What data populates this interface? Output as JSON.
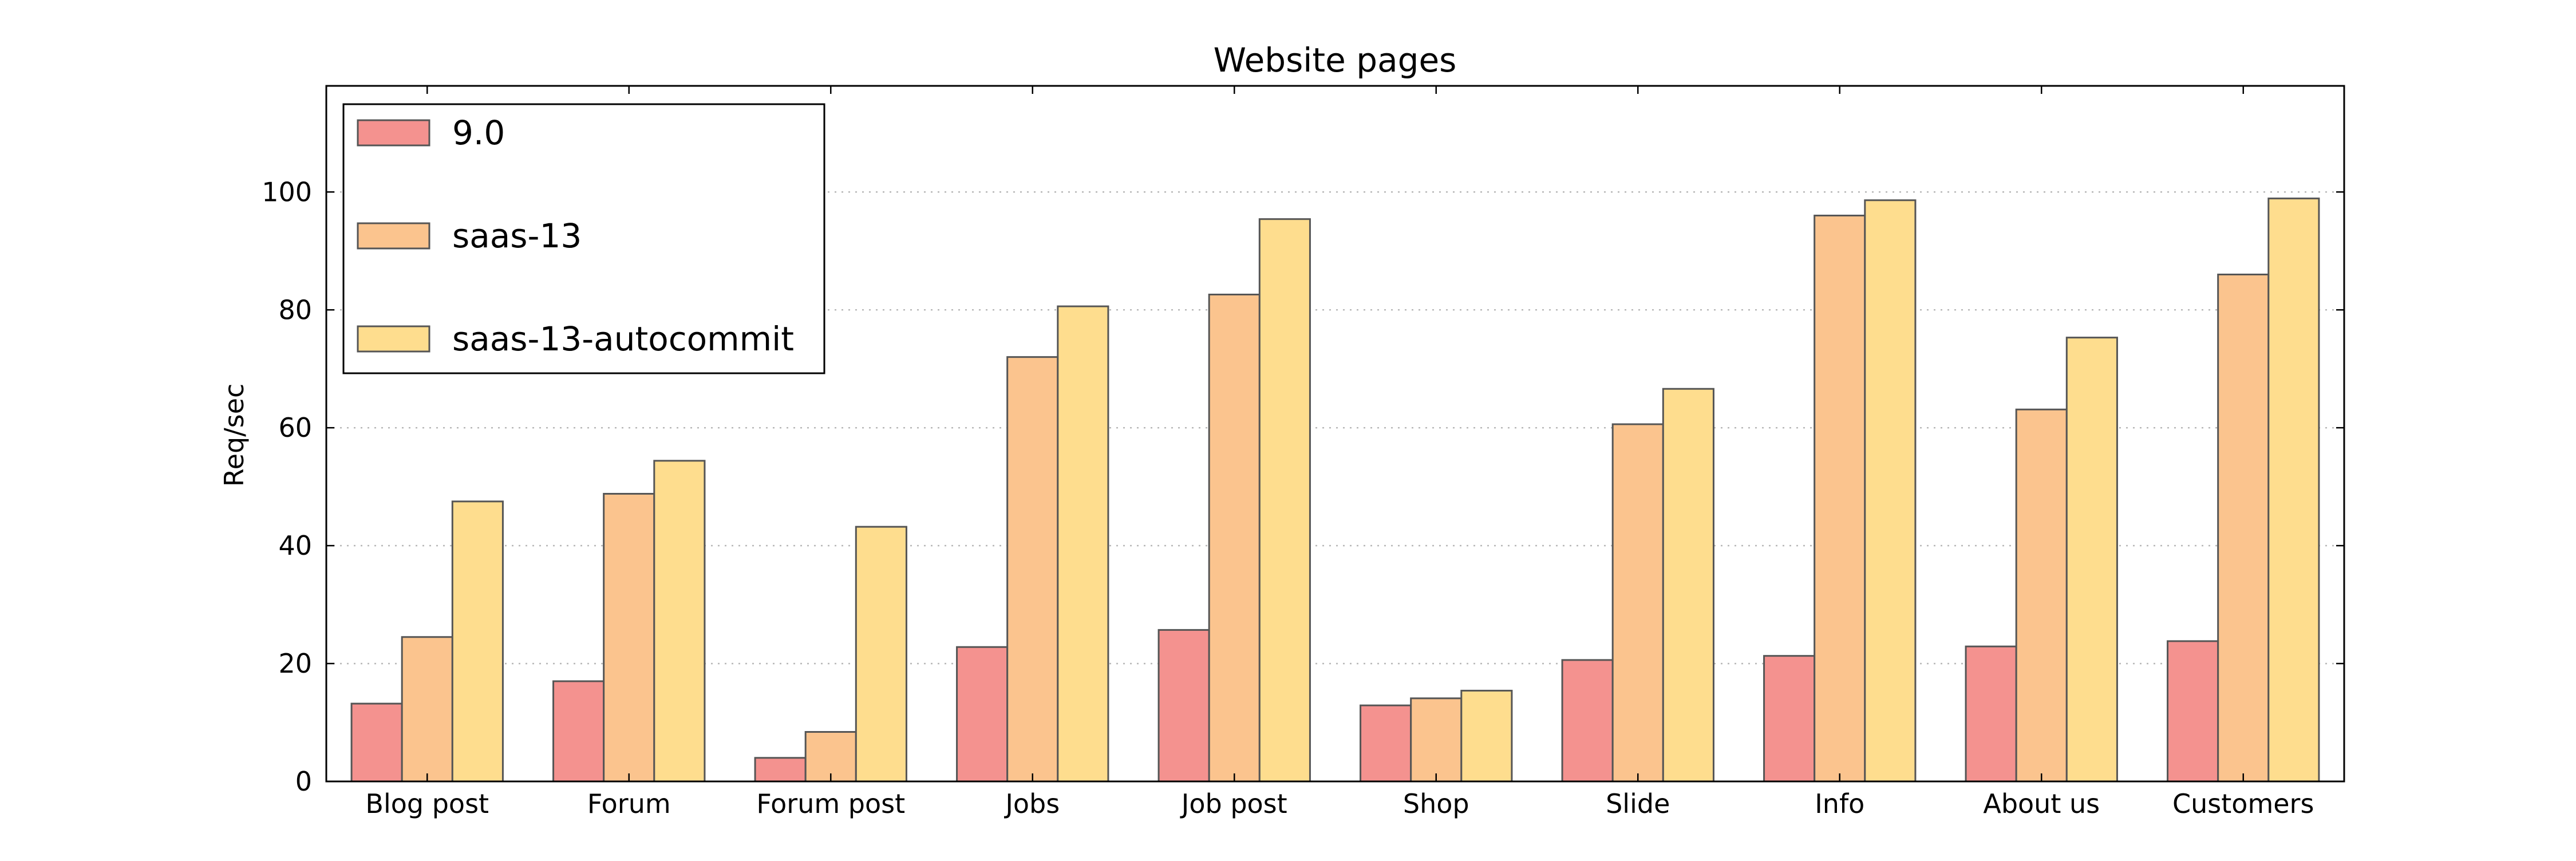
{
  "chart_data": {
    "type": "bar",
    "title": "Website pages",
    "xlabel": "",
    "ylabel": "Req/sec",
    "ylim": [
      0,
      118
    ],
    "yticks": [
      0,
      20,
      40,
      60,
      80,
      100
    ],
    "grid": true,
    "legend_position": "top-left",
    "categories": [
      "Blog post",
      "Forum",
      "Forum post",
      "Jobs",
      "Job post",
      "Shop",
      "Slide",
      "Info",
      "About us",
      "Customers"
    ],
    "series": [
      {
        "name": "9.0",
        "color": "#f4928f",
        "values": [
          13.2,
          17.0,
          4.0,
          22.8,
          25.7,
          12.9,
          20.6,
          21.3,
          22.9,
          23.8
        ]
      },
      {
        "name": "saas-13",
        "color": "#fbc48e",
        "values": [
          24.5,
          48.8,
          8.4,
          72.0,
          82.6,
          14.1,
          60.6,
          96.0,
          63.1,
          86.0
        ]
      },
      {
        "name": "saas-13-autocommit",
        "color": "#fedd8e",
        "values": [
          47.5,
          54.4,
          43.2,
          80.6,
          95.4,
          15.4,
          66.6,
          98.6,
          75.3,
          98.9
        ]
      }
    ]
  }
}
